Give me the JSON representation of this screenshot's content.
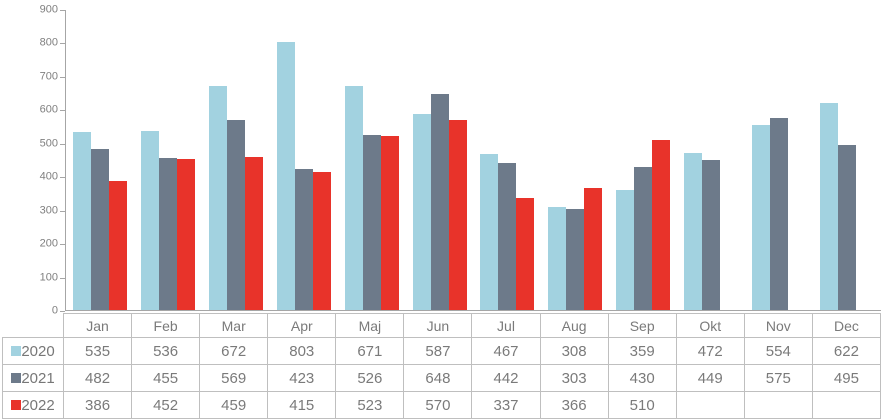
{
  "chart_data": {
    "type": "bar",
    "title": "",
    "xlabel": "",
    "ylabel": "",
    "categories": [
      "Jan",
      "Feb",
      "Mar",
      "Apr",
      "Maj",
      "Jun",
      "Jul",
      "Aug",
      "Sep",
      "Okt",
      "Nov",
      "Dec"
    ],
    "series": [
      {
        "name": "2020",
        "color": "#A2D2E0",
        "values": [
          535,
          536,
          672,
          803,
          671,
          587,
          467,
          308,
          359,
          472,
          554,
          622
        ]
      },
      {
        "name": "2021",
        "color": "#6D7A8A",
        "values": [
          482,
          455,
          569,
          423,
          526,
          648,
          442,
          303,
          430,
          449,
          575,
          495
        ]
      },
      {
        "name": "2022",
        "color": "#E8332A",
        "values": [
          386,
          452,
          459,
          415,
          523,
          570,
          337,
          366,
          510,
          null,
          null,
          null
        ]
      }
    ],
    "ylim": [
      0,
      900
    ],
    "ytick_step": 100,
    "yticks": [
      0,
      100,
      200,
      300,
      400,
      500,
      600,
      700,
      800,
      900
    ],
    "grid": false,
    "legend_position": "data-table-left",
    "colors": {
      "axis": "#A6A6A6",
      "axis_text": "#7F7F7F",
      "table_border": "#BFBFBF",
      "table_text": "#7A7A7A",
      "background": "#FFFFFF"
    }
  }
}
